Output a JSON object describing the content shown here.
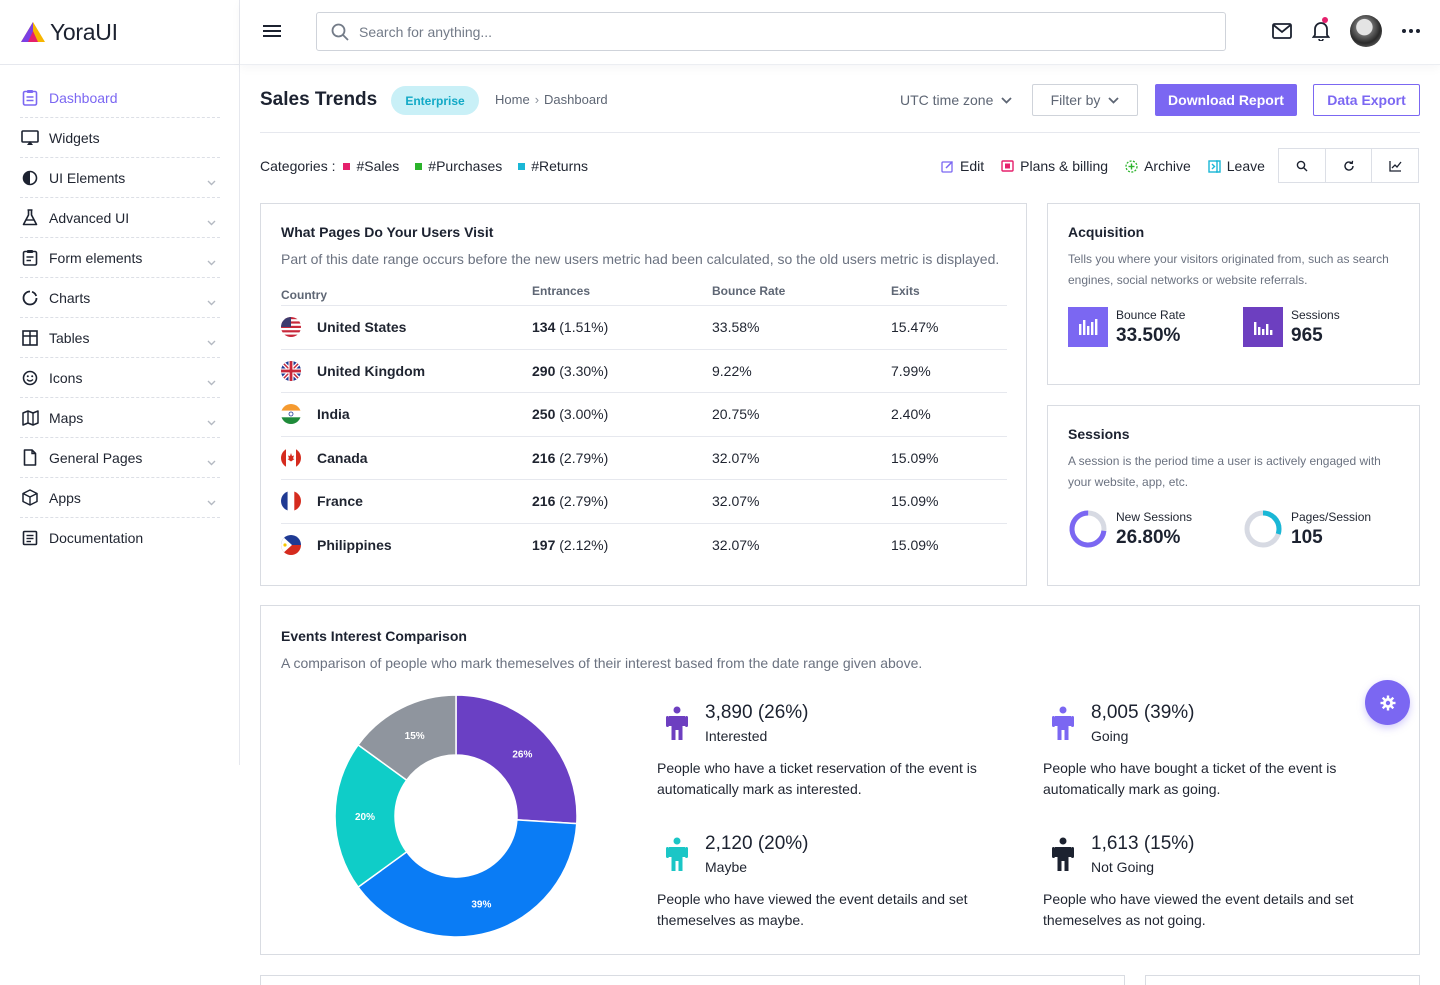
{
  "brand": {
    "name": "YoraUI"
  },
  "sidebar": {
    "items": [
      {
        "label": "Dashboard",
        "icon": "clipboard-icon",
        "active": true,
        "expandable": false
      },
      {
        "label": "Widgets",
        "icon": "monitor-icon",
        "expandable": false
      },
      {
        "label": "UI Elements",
        "icon": "contrast-icon",
        "expandable": true
      },
      {
        "label": "Advanced UI",
        "icon": "flask-icon",
        "expandable": true
      },
      {
        "label": "Form elements",
        "icon": "form-icon",
        "expandable": true
      },
      {
        "label": "Charts",
        "icon": "pie-chart-icon",
        "expandable": true
      },
      {
        "label": "Tables",
        "icon": "table-icon",
        "expandable": true
      },
      {
        "label": "Icons",
        "icon": "smile-icon",
        "expandable": true
      },
      {
        "label": "Maps",
        "icon": "map-icon",
        "expandable": true
      },
      {
        "label": "General Pages",
        "icon": "file-icon",
        "expandable": true
      },
      {
        "label": "Apps",
        "icon": "box-icon",
        "expandable": true
      },
      {
        "label": "Documentation",
        "icon": "document-icon",
        "expandable": false
      }
    ]
  },
  "topbar": {
    "search_placeholder": "Search for anything...",
    "icons": [
      "menu-icon",
      "search-icon",
      "mail-icon",
      "bell-icon",
      "avatar",
      "more-icon"
    ]
  },
  "header": {
    "title": "Sales Trends",
    "badge": "Enterprise",
    "breadcrumb": [
      "Home",
      "Dashboard"
    ],
    "timezone": "UTC time zone",
    "filter": "Filter by",
    "download": "Download Report",
    "export": "Data Export"
  },
  "categories": {
    "label": "Categories :",
    "items": [
      {
        "label": "#Sales",
        "color": "#e5206c"
      },
      {
        "label": "#Purchases",
        "color": "#2bb32b"
      },
      {
        "label": "#Returns",
        "color": "#1ab7d6"
      }
    ]
  },
  "actions": [
    {
      "label": "Edit",
      "icon": "edit-icon",
      "color": "#7b67f2"
    },
    {
      "label": "Plans & billing",
      "icon": "billing-icon",
      "color": "#e5206c"
    },
    {
      "label": "Archive",
      "icon": "archive-icon",
      "color": "#2bb32b"
    },
    {
      "label": "Leave",
      "icon": "leave-icon",
      "color": "#1ab7d6"
    }
  ],
  "iconbar": [
    "search-icon",
    "refresh-icon",
    "line-chart-icon"
  ],
  "pages": {
    "title": "What Pages Do Your Users Visit",
    "subtitle": "Part of this date range occurs before the new users metric had been calculated, so the old users metric is displayed.",
    "columns": [
      "Country",
      "Entrances",
      "Bounce Rate",
      "Exits"
    ],
    "rows": [
      {
        "country": "United States",
        "flag": "us",
        "entrances": "134",
        "entrances_pct": "(1.51%)",
        "bounce": "33.58%",
        "exits": "15.47%"
      },
      {
        "country": "United Kingdom",
        "flag": "uk",
        "entrances": "290",
        "entrances_pct": "(3.30%)",
        "bounce": "9.22%",
        "exits": "7.99%"
      },
      {
        "country": "India",
        "flag": "in",
        "entrances": "250",
        "entrances_pct": "(3.00%)",
        "bounce": "20.75%",
        "exits": "2.40%"
      },
      {
        "country": "Canada",
        "flag": "ca",
        "entrances": "216",
        "entrances_pct": "(2.79%)",
        "bounce": "32.07%",
        "exits": "15.09%"
      },
      {
        "country": "France",
        "flag": "fr",
        "entrances": "216",
        "entrances_pct": "(2.79%)",
        "bounce": "32.07%",
        "exits": "15.09%"
      },
      {
        "country": "Philippines",
        "flag": "ph",
        "entrances": "197",
        "entrances_pct": "(2.12%)",
        "bounce": "32.07%",
        "exits": "15.09%"
      }
    ]
  },
  "acquisition": {
    "title": "Acquisition",
    "subtitle": "Tells you where your visitors originated from, such as search engines, social networks or website referrals.",
    "stats": [
      {
        "label": "Bounce Rate",
        "value": "33.50%",
        "icon": "bar-chart-icon",
        "color": "#7b67f2"
      },
      {
        "label": "Sessions",
        "value": "965",
        "icon": "bar-chart-icon",
        "color": "#6d3fc0"
      }
    ]
  },
  "sessions": {
    "title": "Sessions",
    "subtitle": "A session is the period time a user is actively engaged with your website, app, etc.",
    "stats": [
      {
        "label": "New Sessions",
        "value": "26.80%",
        "fraction": 0.268,
        "color": "#7b67f2"
      },
      {
        "label": "Pages/Session",
        "value": "105",
        "fraction": 0.3,
        "color": "#1ab7d6"
      }
    ]
  },
  "events": {
    "title": "Events Interest Comparison",
    "subtitle": "A comparison of people who mark themeselves of their interest based from the date range given above.",
    "items": [
      {
        "value": "3,890 (26%)",
        "label": "Interested",
        "desc": "People who have a ticket reservation of the event is automatically mark as interested.",
        "color": "#6d3fc0"
      },
      {
        "value": "8,005 (39%)",
        "label": "Going",
        "desc": "People who have bought a ticket of the event is automatically mark as going.",
        "color": "#7b67f2"
      },
      {
        "value": "2,120 (20%)",
        "label": "Maybe",
        "desc": "People who have viewed the event details and set themeselves as maybe.",
        "color": "#1bc6c6"
      },
      {
        "value": "1,613 (15%)",
        "label": "Not Going",
        "desc": "People who have viewed the event details and set themeselves as not going.",
        "color": "#1c2230"
      }
    ]
  },
  "chart_data": {
    "type": "pie",
    "categories": [
      "Interested",
      "Going",
      "Maybe",
      "Not Going"
    ],
    "values": [
      26,
      39,
      20,
      15
    ],
    "labels": [
      "26%",
      "39%",
      "20%",
      "15%"
    ],
    "colors": [
      "#6a40c4",
      "#0a7cf5",
      "#0fcdc8",
      "#8f959e"
    ],
    "title": "",
    "donut": true
  }
}
